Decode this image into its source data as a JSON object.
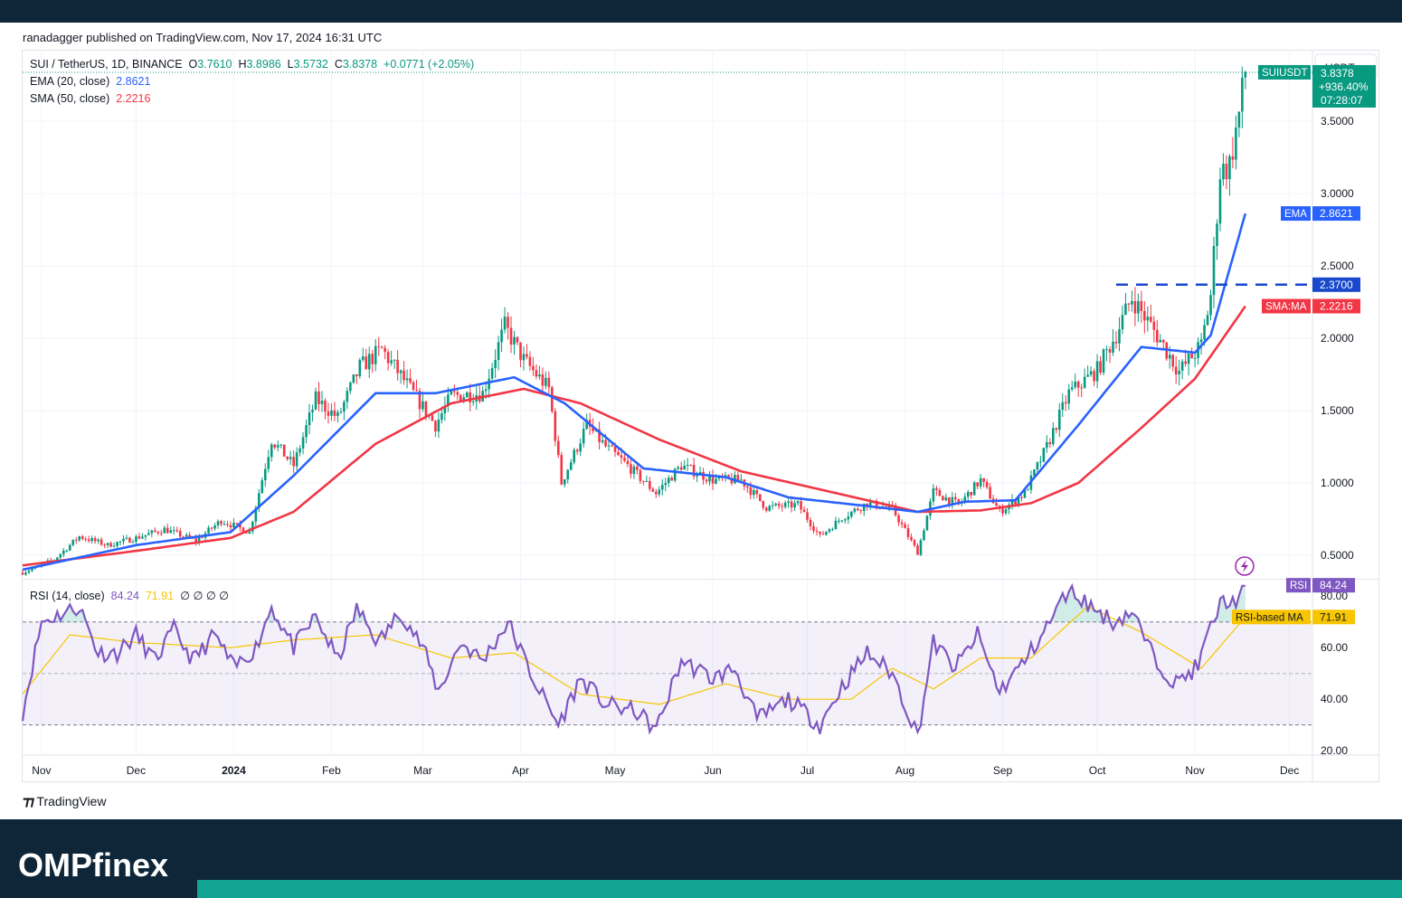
{
  "publisher": "ranadagger published on TradingView.com, Nov 17, 2024 16:31 UTC",
  "brand": "OMPfinex",
  "tradingview_label": "TradingView",
  "header": {
    "symbol": "SUI / TetherUS, 1D, BINANCE",
    "o_label": "O",
    "o": "3.7610",
    "h_label": "H",
    "h": "3.8986",
    "l_label": "L",
    "l": "3.5732",
    "c_label": "C",
    "c": "3.8378",
    "change": "+0.0771 (+2.05%)",
    "ema_label": "EMA (20, close)",
    "ema_value": "2.8621",
    "sma_label": "SMA (50, close)",
    "sma_value": "2.2216"
  },
  "rsi_legend": {
    "label": "RSI (14, close)",
    "value": "84.24",
    "ma_value": "71.91",
    "extras": "∅ ∅ ∅ ∅"
  },
  "colors": {
    "up": "#089981",
    "down": "#f23645",
    "ema": "#2962ff",
    "sma": "#f23645",
    "rsi": "#7e57c2",
    "rsi_ma": "#f7c600",
    "resistance": "#1848cc"
  },
  "chart_data": [
    {
      "type": "candlestick",
      "symbol": "SUIUSDT",
      "currency_label": "USDT",
      "y_ticks": [
        "3.5000",
        "3.0000",
        "2.5000",
        "2.0000",
        "1.5000",
        "1.0000",
        "0.5000"
      ],
      "ylim": [
        0.35,
        3.95
      ],
      "x_ticks": [
        "Nov",
        "Dec",
        "2024",
        "Feb",
        "Mar",
        "Apr",
        "May",
        "Jun",
        "Jul",
        "Aug",
        "Sep",
        "Oct",
        "Nov",
        "Dec"
      ],
      "x_range": [
        "2023-10-26",
        "2024-12-08"
      ],
      "last_date": "2024-11-17",
      "price_badge": {
        "name": "SUIUSDT",
        "value": "3.8378",
        "change": "+936.40%",
        "countdown": "07:28:07",
        "level": 3.8378
      },
      "ema_badge": {
        "name": "EMA",
        "value": "2.8621",
        "level": 2.8621
      },
      "resistance": {
        "value": "2.3700",
        "level": 2.37,
        "from": "2024-10-07"
      },
      "sma_badge": {
        "name": "SMA:MA",
        "value": "2.2216",
        "level": 2.2216
      },
      "anchors": [
        [
          "2023-10-26",
          0.38
        ],
        [
          "2023-11-05",
          0.47
        ],
        [
          "2023-11-13",
          0.63
        ],
        [
          "2023-11-22",
          0.57
        ],
        [
          "2023-12-01",
          0.62
        ],
        [
          "2023-12-10",
          0.68
        ],
        [
          "2023-12-20",
          0.6
        ],
        [
          "2023-12-28",
          0.74
        ],
        [
          "2024-01-06",
          0.66
        ],
        [
          "2024-01-13",
          1.3
        ],
        [
          "2024-01-20",
          1.12
        ],
        [
          "2024-01-27",
          1.58
        ],
        [
          "2024-02-03",
          1.45
        ],
        [
          "2024-02-10",
          1.8
        ],
        [
          "2024-02-17",
          1.92
        ],
        [
          "2024-02-25",
          1.68
        ],
        [
          "2024-03-05",
          1.4
        ],
        [
          "2024-03-10",
          1.6
        ],
        [
          "2024-03-20",
          1.62
        ],
        [
          "2024-03-27",
          2.08
        ],
        [
          "2024-04-02",
          1.85
        ],
        [
          "2024-04-10",
          1.65
        ],
        [
          "2024-04-14",
          1.0
        ],
        [
          "2024-04-22",
          1.4
        ],
        [
          "2024-04-28",
          1.25
        ],
        [
          "2024-05-05",
          1.12
        ],
        [
          "2024-05-14",
          0.93
        ],
        [
          "2024-05-22",
          1.12
        ],
        [
          "2024-06-01",
          1.02
        ],
        [
          "2024-06-10",
          1.02
        ],
        [
          "2024-06-18",
          0.83
        ],
        [
          "2024-06-28",
          0.85
        ],
        [
          "2024-07-05",
          0.63
        ],
        [
          "2024-07-12",
          0.76
        ],
        [
          "2024-07-20",
          0.86
        ],
        [
          "2024-07-28",
          0.82
        ],
        [
          "2024-08-05",
          0.52
        ],
        [
          "2024-08-10",
          0.94
        ],
        [
          "2024-08-18",
          0.85
        ],
        [
          "2024-08-25",
          1.02
        ],
        [
          "2024-08-31",
          0.8
        ],
        [
          "2024-09-08",
          0.93
        ],
        [
          "2024-09-15",
          1.25
        ],
        [
          "2024-09-22",
          1.62
        ],
        [
          "2024-10-01",
          1.78
        ],
        [
          "2024-10-07",
          2.03
        ],
        [
          "2024-10-12",
          2.28
        ],
        [
          "2024-10-20",
          2.02
        ],
        [
          "2024-10-27",
          1.77
        ],
        [
          "2024-11-03",
          1.95
        ],
        [
          "2024-11-06",
          2.3
        ],
        [
          "2024-11-09",
          3.15
        ],
        [
          "2024-11-12",
          3.2
        ],
        [
          "2024-11-15",
          3.55
        ],
        [
          "2024-11-17",
          3.84
        ]
      ],
      "ema_anchors": [
        [
          "2023-10-26",
          0.4
        ],
        [
          "2023-12-01",
          0.57
        ],
        [
          "2023-12-31",
          0.66
        ],
        [
          "2024-01-20",
          1.05
        ],
        [
          "2024-02-15",
          1.62
        ],
        [
          "2024-03-05",
          1.62
        ],
        [
          "2024-03-30",
          1.73
        ],
        [
          "2024-04-15",
          1.55
        ],
        [
          "2024-05-10",
          1.1
        ],
        [
          "2024-06-05",
          1.04
        ],
        [
          "2024-06-25",
          0.9
        ],
        [
          "2024-07-20",
          0.84
        ],
        [
          "2024-08-05",
          0.8
        ],
        [
          "2024-08-20",
          0.87
        ],
        [
          "2024-09-05",
          0.88
        ],
        [
          "2024-09-25",
          1.4
        ],
        [
          "2024-10-15",
          1.94
        ],
        [
          "2024-11-01",
          1.9
        ],
        [
          "2024-11-06",
          2.02
        ],
        [
          "2024-11-17",
          2.8621
        ]
      ],
      "sma_anchors": [
        [
          "2023-10-26",
          0.43
        ],
        [
          "2023-12-01",
          0.53
        ],
        [
          "2023-12-31",
          0.62
        ],
        [
          "2024-01-20",
          0.8
        ],
        [
          "2024-02-15",
          1.27
        ],
        [
          "2024-03-10",
          1.55
        ],
        [
          "2024-04-02",
          1.65
        ],
        [
          "2024-04-20",
          1.55
        ],
        [
          "2024-05-15",
          1.3
        ],
        [
          "2024-06-10",
          1.08
        ],
        [
          "2024-07-10",
          0.93
        ],
        [
          "2024-08-05",
          0.8
        ],
        [
          "2024-08-25",
          0.81
        ],
        [
          "2024-09-10",
          0.86
        ],
        [
          "2024-09-25",
          1.0
        ],
        [
          "2024-10-15",
          1.38
        ],
        [
          "2024-11-01",
          1.72
        ],
        [
          "2024-11-17",
          2.2216
        ]
      ]
    },
    {
      "type": "line",
      "name": "RSI",
      "y_ticks": [
        "80.00",
        "60.00",
        "40.00",
        "20.00"
      ],
      "ylim": [
        19,
        85
      ],
      "levels": {
        "upper": 70,
        "middle": 50,
        "lower": 30
      },
      "rsi_badge": {
        "name": "RSI",
        "value": "84.24",
        "level": 84.24
      },
      "rsi_ma_badge": {
        "name": "RSI-based MA",
        "value": "71.91",
        "level": 71.91
      },
      "anchors": [
        [
          "2023-10-26",
          35
        ],
        [
          "2023-11-01",
          70
        ],
        [
          "2023-11-07",
          73
        ],
        [
          "2023-11-13",
          76
        ],
        [
          "2023-11-19",
          58
        ],
        [
          "2023-11-25",
          58
        ],
        [
          "2023-12-01",
          65
        ],
        [
          "2023-12-07",
          55
        ],
        [
          "2023-12-13",
          67
        ],
        [
          "2023-12-19",
          55
        ],
        [
          "2023-12-26",
          65
        ],
        [
          "2024-01-01",
          52
        ],
        [
          "2024-01-08",
          60
        ],
        [
          "2024-01-13",
          76
        ],
        [
          "2024-01-20",
          60
        ],
        [
          "2024-01-27",
          72
        ],
        [
          "2024-02-03",
          55
        ],
        [
          "2024-02-09",
          75
        ],
        [
          "2024-02-16",
          62
        ],
        [
          "2024-02-23",
          74
        ],
        [
          "2024-03-01",
          60
        ],
        [
          "2024-03-06",
          43
        ],
        [
          "2024-03-13",
          62
        ],
        [
          "2024-03-20",
          55
        ],
        [
          "2024-03-28",
          70
        ],
        [
          "2024-04-05",
          48
        ],
        [
          "2024-04-13",
          30
        ],
        [
          "2024-04-20",
          48
        ],
        [
          "2024-04-28",
          38
        ],
        [
          "2024-05-08",
          35
        ],
        [
          "2024-05-14",
          28
        ],
        [
          "2024-05-22",
          55
        ],
        [
          "2024-06-01",
          48
        ],
        [
          "2024-06-08",
          52
        ],
        [
          "2024-06-15",
          32
        ],
        [
          "2024-06-25",
          40
        ],
        [
          "2024-07-05",
          30
        ],
        [
          "2024-07-12",
          45
        ],
        [
          "2024-07-20",
          58
        ],
        [
          "2024-07-28",
          50
        ],
        [
          "2024-08-05",
          26
        ],
        [
          "2024-08-10",
          62
        ],
        [
          "2024-08-17",
          52
        ],
        [
          "2024-08-24",
          65
        ],
        [
          "2024-08-31",
          43
        ],
        [
          "2024-09-08",
          55
        ],
        [
          "2024-09-15",
          68
        ],
        [
          "2024-09-22",
          83
        ],
        [
          "2024-09-29",
          76
        ],
        [
          "2024-10-06",
          70
        ],
        [
          "2024-10-12",
          74
        ],
        [
          "2024-10-19",
          56
        ],
        [
          "2024-10-26",
          46
        ],
        [
          "2024-11-02",
          53
        ],
        [
          "2024-11-06",
          68
        ],
        [
          "2024-11-10",
          79
        ],
        [
          "2024-11-13",
          77
        ],
        [
          "2024-11-17",
          84.24
        ]
      ],
      "ma_anchors": [
        [
          "2023-10-26",
          42
        ],
        [
          "2023-11-10",
          65
        ],
        [
          "2023-12-01",
          62
        ],
        [
          "2023-12-31",
          60
        ],
        [
          "2024-01-20",
          63
        ],
        [
          "2024-02-15",
          65
        ],
        [
          "2024-03-10",
          56
        ],
        [
          "2024-03-30",
          58
        ],
        [
          "2024-04-20",
          42
        ],
        [
          "2024-05-15",
          38
        ],
        [
          "2024-06-05",
          46
        ],
        [
          "2024-06-25",
          40
        ],
        [
          "2024-07-15",
          40
        ],
        [
          "2024-07-28",
          52
        ],
        [
          "2024-08-10",
          44
        ],
        [
          "2024-08-25",
          56
        ],
        [
          "2024-09-10",
          56
        ],
        [
          "2024-09-28",
          76
        ],
        [
          "2024-10-15",
          66
        ],
        [
          "2024-11-03",
          52
        ],
        [
          "2024-11-17",
          71.91
        ]
      ]
    }
  ]
}
